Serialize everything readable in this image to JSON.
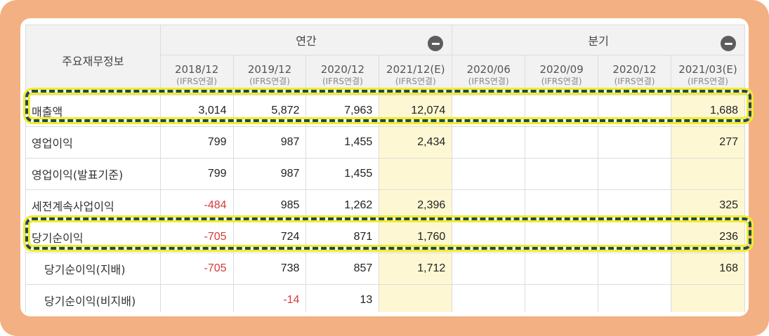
{
  "table": {
    "corner_label": "주요재무정보",
    "groups": {
      "annual": "연간",
      "quarter": "분기"
    },
    "columns": [
      {
        "period": "2018/12",
        "basis": "(IFRS연결)"
      },
      {
        "period": "2019/12",
        "basis": "(IFRS연결)"
      },
      {
        "period": "2020/12",
        "basis": "(IFRS연결)"
      },
      {
        "period": "2021/12(E)",
        "basis": "(IFRS연결)"
      },
      {
        "period": "2020/06",
        "basis": "(IFRS연결)"
      },
      {
        "period": "2020/09",
        "basis": "(IFRS연결)"
      },
      {
        "period": "2020/12",
        "basis": "(IFRS연결)"
      },
      {
        "period": "2021/03(E)",
        "basis": "(IFRS연결)"
      }
    ],
    "rows": [
      {
        "label": "매출액",
        "values": [
          "3,014",
          "5,872",
          "7,963",
          "12,074",
          "",
          "",
          "",
          "1,688"
        ]
      },
      {
        "label": "영업이익",
        "values": [
          "799",
          "987",
          "1,455",
          "2,434",
          "",
          "",
          "",
          "277"
        ]
      },
      {
        "label": "영업이익(발표기준)",
        "values": [
          "799",
          "987",
          "1,455",
          "",
          "",
          "",
          "",
          ""
        ]
      },
      {
        "label": "세전계속사업이익",
        "values": [
          "-484",
          "985",
          "1,262",
          "2,396",
          "",
          "",
          "",
          "325"
        ]
      },
      {
        "label": "당기순이익",
        "values": [
          "-705",
          "724",
          "871",
          "1,760",
          "",
          "",
          "",
          "236"
        ]
      },
      {
        "label": "당기순이익(지배)",
        "values": [
          "-705",
          "738",
          "857",
          "1,712",
          "",
          "",
          "",
          "168"
        ]
      },
      {
        "label": "당기순이익(비지배)",
        "values": [
          "",
          "-14",
          "13",
          "",
          "",
          "",
          "",
          ""
        ]
      }
    ]
  },
  "colors": {
    "frame": "#f3b083",
    "estimate_bg": "#fdf8d3",
    "negative": "#d63a3a",
    "highlight_dash": "#1c4a4e",
    "highlight_glow": "#f2eb2a"
  }
}
